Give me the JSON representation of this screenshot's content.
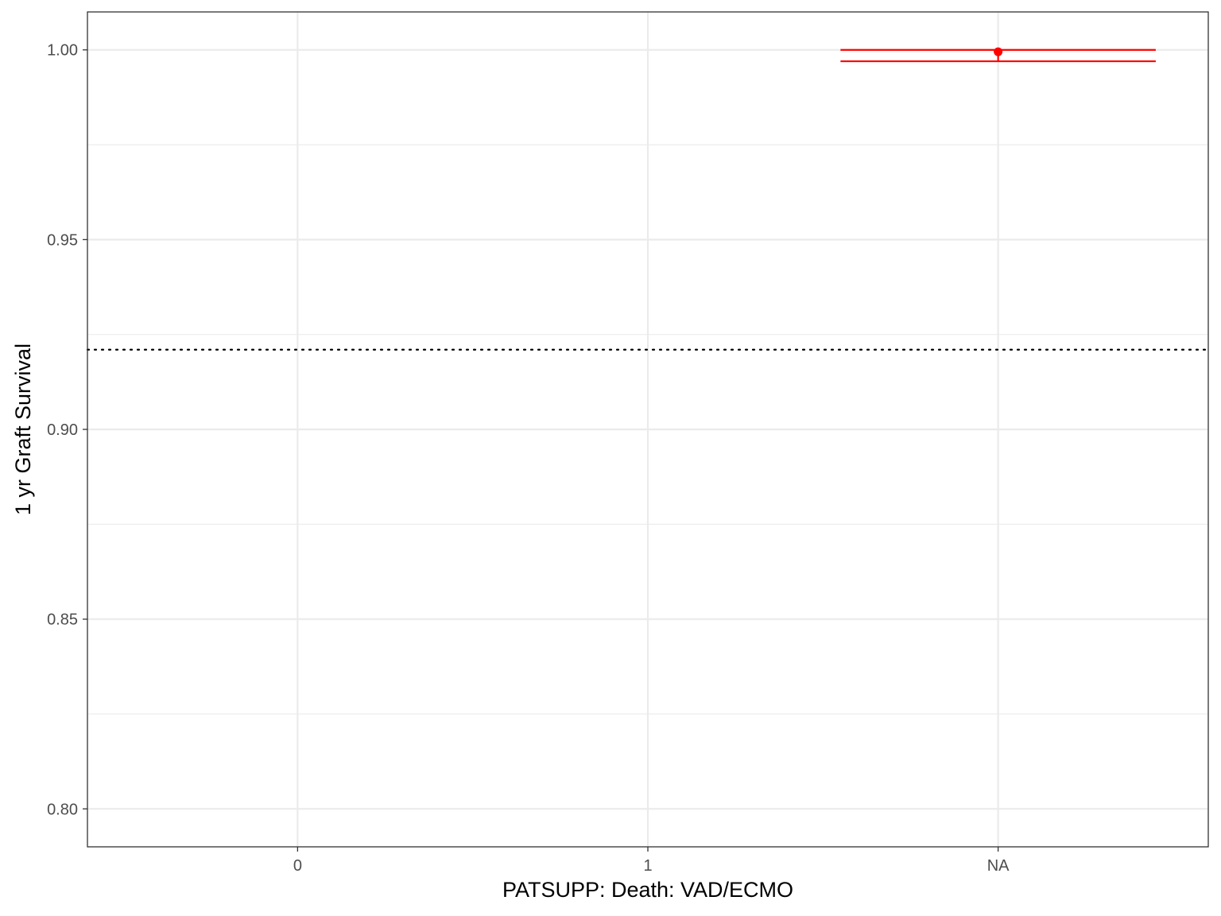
{
  "chart_data": {
    "type": "errorbar",
    "title": "",
    "xlabel": "PATSUPP: Death: VAD/ECMO",
    "ylabel": "1 yr Graft Survival",
    "categories": [
      "0",
      "1",
      "NA"
    ],
    "ylim": [
      0.79,
      1.01
    ],
    "yticks": [
      0.8,
      0.85,
      0.9,
      0.95,
      1.0
    ],
    "ytick_labels": [
      "0.80",
      "0.85",
      "0.90",
      "0.95",
      "1.00"
    ],
    "reference_line": 0.921,
    "grid": true,
    "legend": "none",
    "points": [
      {
        "category": "NA",
        "estimate": 0.9995,
        "lower": 0.997,
        "upper": 1.0
      }
    ],
    "colors": {
      "point": "#ff0000",
      "grid": "#ebebeb",
      "reference": "#000000",
      "panel_border": "#333333"
    }
  }
}
